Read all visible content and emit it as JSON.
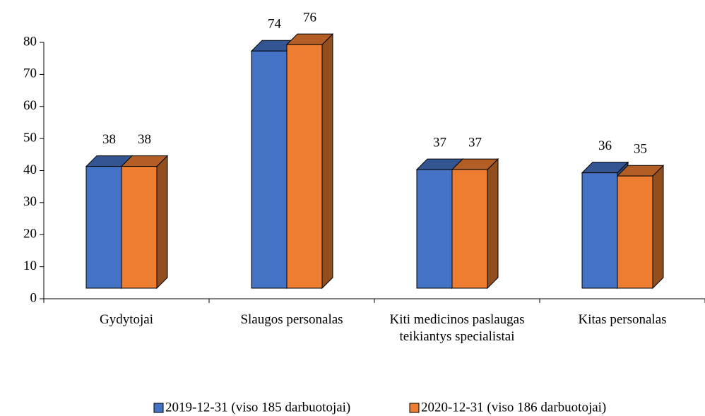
{
  "chart_data": {
    "type": "bar3d",
    "categories": [
      "Gydytojai",
      "Slaugos personalas",
      "Kiti medicinos paslaugas teikiantys specialistai",
      "Kitas personalas"
    ],
    "series": [
      {
        "name": "2019-12-31 (viso 185 darbuotojai)",
        "color": "#4472c4",
        "values": [
          38,
          74,
          37,
          36
        ]
      },
      {
        "name": "2020-12-31 (viso 186 darbuotojai)",
        "color": "#ed7d31",
        "values": [
          38,
          76,
          37,
          35
        ]
      }
    ],
    "ylim": [
      0,
      80
    ],
    "yticks": [
      0,
      10,
      20,
      30,
      40,
      50,
      60,
      70,
      80
    ],
    "legend": "bottom"
  }
}
